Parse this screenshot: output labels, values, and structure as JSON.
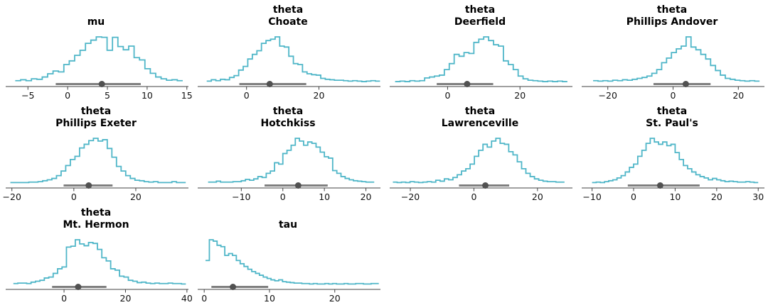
{
  "figure": {
    "background": "#ffffff",
    "colors": {
      "distribution_line": "#4fb6c8",
      "interval_line": "#7f7f7f",
      "point_estimate_dot": "#515151",
      "axis_line": "#424242",
      "tick_label_text": "#111111",
      "title_text": "#000000"
    },
    "layout": {
      "columns": 4,
      "rows": 3,
      "legend": "none",
      "grid_lines": false,
      "visible_spines": [
        "bottom"
      ]
    }
  },
  "chart_data": [
    {
      "id": "mu",
      "type": "line",
      "style": "step-histogram",
      "title_lines": [
        "mu"
      ],
      "xlabel": "",
      "ylabel": "",
      "xlim": [
        -7.8,
        15.2
      ],
      "xticks": [
        {
          "value": -5,
          "label": "−5"
        },
        {
          "value": 0,
          "label": "0"
        },
        {
          "value": 5,
          "label": "5"
        },
        {
          "value": 10,
          "label": "10"
        },
        {
          "value": 15,
          "label": "15"
        }
      ],
      "hist": {
        "start": -6.6,
        "bin_width": 0.68,
        "density": [
          0.05,
          0.07,
          0.05,
          0.09,
          0.08,
          0.13,
          0.2,
          0.26,
          0.24,
          0.4,
          0.48,
          0.6,
          0.71,
          0.86,
          0.93,
          1.0,
          0.99,
          0.71,
          0.99,
          0.79,
          0.72,
          0.8,
          0.55,
          0.5,
          0.31,
          0.21,
          0.13,
          0.09,
          0.06,
          0.07,
          0.05
        ]
      },
      "interval": {
        "lower": -1.5,
        "point": 4.3,
        "upper": 9.2
      }
    },
    {
      "id": "theta-choate",
      "type": "line",
      "style": "step-histogram",
      "title_lines": [
        "theta",
        "Choate"
      ],
      "xlabel": "",
      "ylabel": "",
      "xlim": [
        -13.5,
        37
      ],
      "xticks": [
        {
          "value": 0,
          "label": "0"
        },
        {
          "value": 20,
          "label": "20"
        }
      ],
      "hist": {
        "start": -11,
        "bin_width": 1.26,
        "density": [
          0.04,
          0.07,
          0.05,
          0.08,
          0.07,
          0.12,
          0.16,
          0.28,
          0.36,
          0.52,
          0.62,
          0.7,
          0.86,
          0.92,
          0.95,
          1.0,
          0.8,
          0.78,
          0.58,
          0.42,
          0.4,
          0.24,
          0.2,
          0.18,
          0.17,
          0.1,
          0.08,
          0.07,
          0.06,
          0.06,
          0.05,
          0.04,
          0.05,
          0.04,
          0.03,
          0.04,
          0.05,
          0.04
        ]
      },
      "interval": {
        "lower": -2,
        "point": 6.4,
        "upper": 16.5
      }
    },
    {
      "id": "theta-deerfield",
      "type": "line",
      "style": "step-histogram",
      "title_lines": [
        "theta",
        "Deerfield"
      ],
      "xlabel": "",
      "ylabel": "",
      "xlim": [
        -16,
        34.5
      ],
      "xticks": [
        {
          "value": 0,
          "label": "0"
        },
        {
          "value": 20,
          "label": "20"
        }
      ],
      "hist": {
        "start": -14.5,
        "bin_width": 1.36,
        "density": [
          0.03,
          0.04,
          0.03,
          0.05,
          0.04,
          0.05,
          0.11,
          0.13,
          0.15,
          0.17,
          0.29,
          0.42,
          0.62,
          0.58,
          0.66,
          0.64,
          0.88,
          0.95,
          1.0,
          0.92,
          0.83,
          0.8,
          0.48,
          0.4,
          0.29,
          0.15,
          0.09,
          0.06,
          0.05,
          0.04,
          0.03,
          0.04,
          0.03,
          0.04,
          0.03
        ]
      },
      "interval": {
        "lower": -3,
        "point": 5.4,
        "upper": 12.6
      }
    },
    {
      "id": "theta-phillips-andover",
      "type": "line",
      "style": "step-histogram",
      "title_lines": [
        "theta",
        "Phillips Andover"
      ],
      "xlabel": "",
      "ylabel": "",
      "xlim": [
        -28,
        28
      ],
      "xticks": [
        {
          "value": -20,
          "label": "−20"
        },
        {
          "value": 0,
          "label": "0"
        },
        {
          "value": 20,
          "label": "20"
        }
      ],
      "hist": {
        "start": -24.5,
        "bin_width": 1.5,
        "density": [
          0.05,
          0.04,
          0.05,
          0.04,
          0.06,
          0.05,
          0.07,
          0.06,
          0.08,
          0.1,
          0.12,
          0.15,
          0.21,
          0.29,
          0.44,
          0.54,
          0.66,
          0.74,
          0.8,
          1.0,
          0.78,
          0.72,
          0.62,
          0.52,
          0.38,
          0.27,
          0.17,
          0.1,
          0.08,
          0.06,
          0.05,
          0.04,
          0.05,
          0.04
        ]
      },
      "interval": {
        "lower": -6,
        "point": 3.9,
        "upper": 11.5
      }
    },
    {
      "id": "theta-phillips-exeter",
      "type": "line",
      "style": "step-histogram",
      "title_lines": [
        "theta",
        "Phillips Exeter"
      ],
      "xlabel": "",
      "ylabel": "",
      "xlim": [
        -22,
        37
      ],
      "xticks": [
        {
          "value": -20,
          "label": "−20"
        },
        {
          "value": 0,
          "label": "0"
        },
        {
          "value": 20,
          "label": "20"
        }
      ],
      "hist": {
        "start": -20.5,
        "bin_width": 1.49,
        "density": [
          0.04,
          0.04,
          0.04,
          0.04,
          0.05,
          0.05,
          0.06,
          0.08,
          0.1,
          0.13,
          0.19,
          0.29,
          0.41,
          0.54,
          0.61,
          0.79,
          0.87,
          0.95,
          1.0,
          0.94,
          0.97,
          0.78,
          0.59,
          0.39,
          0.29,
          0.19,
          0.13,
          0.09,
          0.08,
          0.06,
          0.05,
          0.06,
          0.04,
          0.04,
          0.04,
          0.06,
          0.04,
          0.04
        ]
      },
      "interval": {
        "lower": -3.3,
        "point": 4.8,
        "upper": 12.5
      }
    },
    {
      "id": "theta-hotchkiss",
      "type": "line",
      "style": "step-histogram",
      "title_lines": [
        "theta",
        "Hotchkiss"
      ],
      "xlabel": "",
      "ylabel": "",
      "xlim": [
        -20.5,
        23.5
      ],
      "xticks": [
        {
          "value": -10,
          "label": "−10"
        },
        {
          "value": 0,
          "label": "0"
        },
        {
          "value": 10,
          "label": "10"
        },
        {
          "value": 20,
          "label": "20"
        }
      ],
      "hist": {
        "start": -18,
        "bin_width": 1.0,
        "density": [
          0.05,
          0.05,
          0.07,
          0.05,
          0.05,
          0.05,
          0.06,
          0.06,
          0.08,
          0.11,
          0.09,
          0.12,
          0.17,
          0.15,
          0.24,
          0.29,
          0.47,
          0.44,
          0.67,
          0.74,
          0.85,
          1.0,
          0.94,
          0.85,
          0.92,
          0.89,
          0.81,
          0.7,
          0.6,
          0.57,
          0.3,
          0.24,
          0.17,
          0.13,
          0.1,
          0.08,
          0.07,
          0.06,
          0.05,
          0.05
        ]
      },
      "interval": {
        "lower": -4.4,
        "point": 3.7,
        "upper": 10.8
      }
    },
    {
      "id": "theta-lawrenceville",
      "type": "line",
      "style": "step-histogram",
      "title_lines": [
        "theta",
        "Lawrenceville"
      ],
      "xlabel": "",
      "ylabel": "",
      "xlim": [
        -26.5,
        31
      ],
      "xticks": [
        {
          "value": -20,
          "label": "−20"
        },
        {
          "value": 0,
          "label": "0"
        },
        {
          "value": 20,
          "label": "20"
        }
      ],
      "hist": {
        "start": -25.5,
        "bin_width": 1.35,
        "density": [
          0.05,
          0.04,
          0.05,
          0.04,
          0.06,
          0.05,
          0.04,
          0.05,
          0.06,
          0.05,
          0.09,
          0.07,
          0.12,
          0.1,
          0.15,
          0.21,
          0.29,
          0.34,
          0.44,
          0.61,
          0.74,
          0.87,
          0.81,
          0.94,
          1.0,
          0.89,
          0.87,
          0.71,
          0.64,
          0.49,
          0.34,
          0.24,
          0.17,
          0.12,
          0.09,
          0.07,
          0.06,
          0.06,
          0.05,
          0.05
        ]
      },
      "interval": {
        "lower": -4.7,
        "point": 3.6,
        "upper": 11.1
      }
    },
    {
      "id": "theta-st-pauls",
      "type": "line",
      "style": "step-histogram",
      "title_lines": [
        "theta",
        "St. Paul's"
      ],
      "xlabel": "",
      "ylabel": "",
      "xlim": [
        -12.5,
        31.5
      ],
      "xticks": [
        {
          "value": -10,
          "label": "−10"
        },
        {
          "value": 0,
          "label": "0"
        },
        {
          "value": 10,
          "label": "10"
        },
        {
          "value": 20,
          "label": "20"
        },
        {
          "value": 30,
          "label": "30"
        }
      ],
      "hist": {
        "start": -10,
        "bin_width": 1.0,
        "density": [
          0.04,
          0.05,
          0.04,
          0.06,
          0.08,
          0.1,
          0.14,
          0.19,
          0.27,
          0.37,
          0.44,
          0.61,
          0.74,
          0.89,
          1.0,
          0.92,
          0.87,
          0.92,
          0.84,
          0.87,
          0.69,
          0.54,
          0.41,
          0.34,
          0.27,
          0.21,
          0.17,
          0.14,
          0.1,
          0.13,
          0.1,
          0.08,
          0.06,
          0.07,
          0.06,
          0.05,
          0.05,
          0.06,
          0.05,
          0.04
        ]
      },
      "interval": {
        "lower": -1.4,
        "point": 6.4,
        "upper": 15.9
      }
    },
    {
      "id": "theta-mt-hermon",
      "type": "line",
      "style": "step-histogram",
      "title_lines": [
        "theta",
        "Mt. Hermon"
      ],
      "xlabel": "",
      "ylabel": "",
      "xlim": [
        -19,
        40.5
      ],
      "xticks": [
        {
          "value": 0,
          "label": "0"
        },
        {
          "value": 20,
          "label": "20"
        },
        {
          "value": 40,
          "label": "40"
        }
      ],
      "hist": {
        "start": -16.5,
        "bin_width": 1.44,
        "density": [
          0.05,
          0.06,
          0.06,
          0.05,
          0.08,
          0.1,
          0.12,
          0.17,
          0.19,
          0.27,
          0.37,
          0.41,
          0.84,
          0.86,
          1.0,
          0.91,
          0.87,
          0.94,
          0.92,
          0.79,
          0.61,
          0.54,
          0.37,
          0.34,
          0.21,
          0.19,
          0.12,
          0.1,
          0.07,
          0.08,
          0.06,
          0.05,
          0.06,
          0.05,
          0.05,
          0.06,
          0.05,
          0.05,
          0.04
        ]
      },
      "interval": {
        "lower": -3.9,
        "point": 4.6,
        "upper": 13.8
      }
    },
    {
      "id": "tau",
      "type": "line",
      "style": "step-histogram",
      "title_lines": [
        "tau"
      ],
      "xlabel": "",
      "ylabel": "",
      "xlim": [
        -1,
        27
      ],
      "xticks": [
        {
          "value": 0,
          "label": "0"
        },
        {
          "value": 10,
          "label": "10"
        },
        {
          "value": 20,
          "label": "20"
        }
      ],
      "hist": {
        "start": 0.2,
        "bin_width": 0.59,
        "density": [
          0.55,
          1.0,
          0.97,
          0.88,
          0.85,
          0.66,
          0.7,
          0.66,
          0.55,
          0.48,
          0.42,
          0.36,
          0.31,
          0.27,
          0.23,
          0.19,
          0.16,
          0.13,
          0.11,
          0.13,
          0.09,
          0.08,
          0.07,
          0.06,
          0.06,
          0.05,
          0.05,
          0.04,
          0.05,
          0.04,
          0.04,
          0.05,
          0.04,
          0.05,
          0.04,
          0.04,
          0.05,
          0.04,
          0.04,
          0.05,
          0.05,
          0.04,
          0.04,
          0.05,
          0.05
        ]
      },
      "interval": {
        "lower": 1.1,
        "point": 4.4,
        "upper": 9.8
      }
    }
  ]
}
